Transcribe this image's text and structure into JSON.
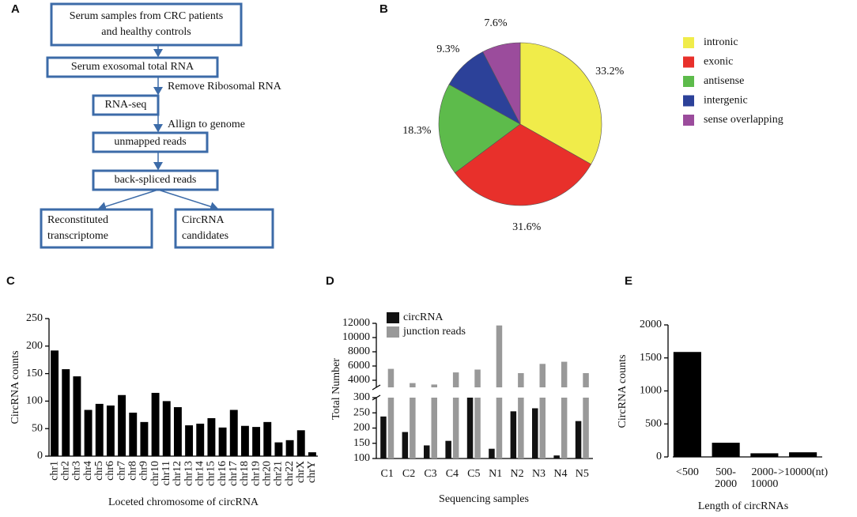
{
  "flowchart": {
    "panel_label": "A",
    "boxes": [
      [
        "Serum samples from CRC patients",
        "and healthy controls"
      ],
      [
        "Serum exosomal total RNA"
      ],
      [
        "RNA-seq"
      ],
      [
        "unmapped reads"
      ],
      [
        "back-spliced reads"
      ],
      [
        "Reconstituted",
        "transcriptome"
      ],
      [
        "CircRNA",
        "candidates"
      ]
    ],
    "steps": [
      "Remove Ribosomal RNA",
      "Allign to genome"
    ]
  },
  "chart_data": [
    {
      "type": "pie",
      "panel_label": "B",
      "categories": [
        "intronic",
        "exonic",
        "antisense",
        "intergenic",
        "sense overlapping"
      ],
      "values": [
        33.2,
        31.6,
        18.3,
        9.3,
        7.6
      ],
      "value_labels": [
        "33.2%",
        "31.6%",
        "18.3%",
        "9.3%",
        "7.6%"
      ],
      "colors": [
        "#f0ec4a",
        "#e8302b",
        "#5dbb4b",
        "#2c4199",
        "#9b4c9c"
      ]
    },
    {
      "type": "bar",
      "panel_label": "C",
      "ylabel": "CircRNA counts",
      "xlabel": "Loceted chromosome of circRNA",
      "categories": [
        "chr1",
        "chr2",
        "chr3",
        "chr4",
        "chr5",
        "chr6",
        "chr7",
        "chr8",
        "chr9",
        "chr10",
        "chr11",
        "chr12",
        "chr13",
        "chr14",
        "chr15",
        "chr16",
        "chr17",
        "chr18",
        "chr19",
        "chr20",
        "chr21",
        "chr22",
        "chrX",
        "chrY"
      ],
      "values": [
        192,
        158,
        145,
        84,
        95,
        92,
        111,
        79,
        62,
        115,
        100,
        89,
        56,
        59,
        69,
        52,
        84,
        55,
        53,
        62,
        25,
        29,
        47,
        7
      ],
      "color": "#000000",
      "ylim": [
        0,
        250
      ],
      "yticks": [
        0,
        50,
        100,
        150,
        200,
        250
      ]
    },
    {
      "type": "bar",
      "panel_label": "D",
      "ylabel": "Total Number",
      "xlabel": "Sequencing samples",
      "categories": [
        "C1",
        "C2",
        "C3",
        "C4",
        "C5",
        "N1",
        "N2",
        "N3",
        "N4",
        "N5"
      ],
      "series": [
        {
          "name": "circRNA",
          "color": "#111111",
          "values": [
            238,
            187,
            143,
            158,
            300,
            132,
            255,
            265,
            110,
            223
          ]
        },
        {
          "name": "junction reads",
          "color": "#999999",
          "values": [
            5600,
            3600,
            3400,
            5100,
            5500,
            11700,
            5000,
            6300,
            6600,
            5000
          ]
        }
      ],
      "ylim": [
        100,
        300
      ],
      "yticks": [
        100,
        150,
        200,
        250,
        300
      ],
      "ylim_upper": [
        3000,
        12000
      ],
      "yticks_upper": [
        4000,
        6000,
        8000,
        10000,
        12000
      ]
    },
    {
      "type": "bar",
      "panel_label": "E",
      "ylabel": "CircRNA counts",
      "xlabel": "Length of circRNAs",
      "categories": [
        "<500",
        "500-2000",
        "2000-10000",
        ">10000(nt)"
      ],
      "values": [
        1590,
        215,
        55,
        70
      ],
      "color": "#000000",
      "ylim": [
        0,
        2000
      ],
      "yticks": [
        0,
        500,
        1000,
        1500,
        2000
      ]
    }
  ]
}
